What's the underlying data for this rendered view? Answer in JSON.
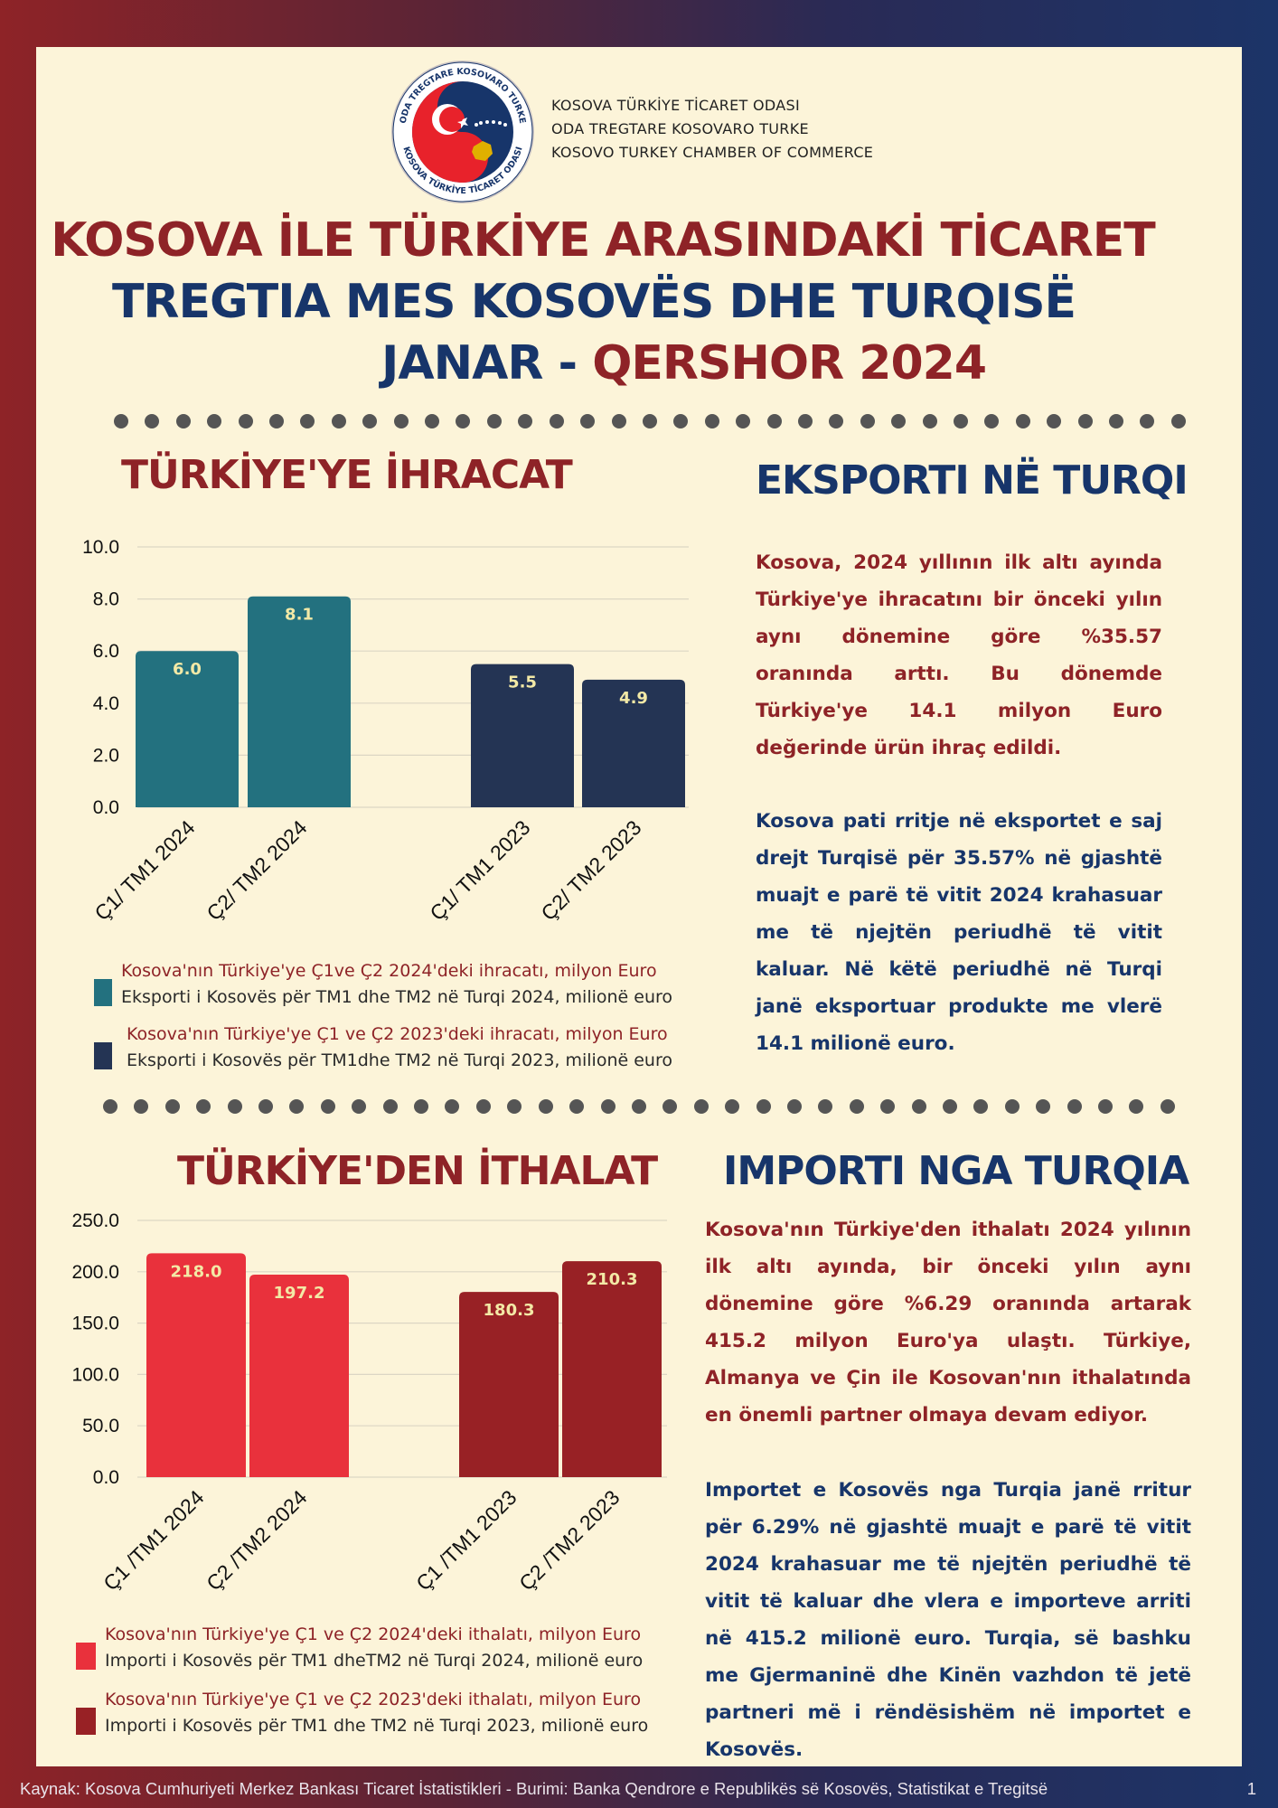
{
  "header": {
    "logo_ring_text": "ODA TREGTARE KOSOVARO TURKE · KOSOVA TÜRKİYE TİCARET ODASI",
    "org_lines": [
      "KOSOVA TÜRKİYE TİCARET ODASI",
      "ODA TREGTARE KOSOVARO TURKE",
      "KOSOVO TURKEY CHAMBER OF COMMERCE"
    ],
    "title_tr": "KOSOVA İLE TÜRKİYE ARASINDAKİ TİCARET",
    "title_sq": "TREGTIA MES KOSOVËS DHE TURQISË",
    "period_a": "JANAR - ",
    "period_b": "QERSHOR 2024"
  },
  "colors": {
    "red": "#8e2327",
    "navy": "#17356a",
    "teal": "#23717f",
    "dark_navy": "#243454",
    "bright_red": "#e9313c",
    "dark_red": "#982125",
    "paper": "#fcf4d9"
  },
  "export": {
    "title_tr": "TÜRKİYE'YE İHRACAT",
    "title_sq": "EKSPORTI NË TURQI",
    "text_tr": "Kosova, 2024 yıllının ilk altı ayında Türkiye'ye ihracatını bir önceki yılın aynı dönemine göre %35.57 oranında arttı. Bu dönemde Türkiye'ye 14.1 milyon Euro değerinde ürün ihraç edildi.",
    "text_sq": "Kosova pati rritje në eksportet e saj drejt Turqisë për 35.57% në gjashtë muajt e  parë të vitit 2024 krahasuar me të njejtën periudhë të vitit kaluar. Në këtë periudhë në Turqi janë eksportuar produkte me vlerë 14.1 milionë euro.",
    "legend": [
      {
        "line1": "Kosova'nın Türkiye'ye Ç1ve Ç2 2024'deki ihracatı, milyon Euro",
        "line2": "Eksporti i Kosovës për TM1 dhe TM2   në Turqi  2024,  milionë euro"
      },
      {
        "line1": "Kosova'nın Türkiye'ye Ç1 ve Ç2  2023'deki ihracatı, milyon Euro",
        "line2": "Eksporti i Kosovës për TM1dhe TM2 në Turqi  2023,  milionë euro"
      }
    ]
  },
  "import": {
    "title_tr": "TÜRKİYE'DEN İTHALAT",
    "title_sq": "IMPORTI NGA TURQIA",
    "text_tr": "Kosova'nın Türkiye'den ithalatı 2024 yılının ilk altı  ayında, bir önceki yılın aynı dönemine göre %6.29 oranında artarak 415.2 milyon Euro'ya ulaştı. Türkiye, Almanya ve Çin ile Kosovan'nın ithalatında en önemli partner olmaya devam ediyor.",
    "text_sq": "Importet e Kosovës nga Turqia janë rritur për 6.29% në gjashtë muajt e parë të vitit 2024 krahasuar me të njejtën periudhë të vitit të kaluar dhe vlera e importeve arriti në 415.2 milionë euro. Turqia, së bashku me Gjermaninë dhe Kinën vazhdon të jetë partneri më i rëndësishëm në importet e Kosovës.",
    "legend": [
      {
        "line1": "Kosova'nın Türkiye'ye Ç1 ve Ç2 2024'deki ithalatı, milyon Euro",
        "line2": "Importi i Kosovës për TM1 dheTM2 në Turqi 2024, milionë euro"
      },
      {
        "line1": "Kosova'nın Türkiye'ye Ç1 ve Ç2  2023'deki ithalatı, milyon Euro",
        "line2": "Importi i Kosovës për TM1 dhe TM2 në Turqi 2023, milionë euro"
      }
    ]
  },
  "chart_data": [
    {
      "type": "bar",
      "categories": [
        "Ç1/ TM1 2024",
        "Ç2/ TM2 2024",
        "Ç1/ TM1 2023",
        "Ç2/ TM2 2023"
      ],
      "values": [
        6.0,
        8.1,
        5.5,
        4.9
      ],
      "value_labels": [
        "6.0",
        "8.1",
        "5.5",
        "4.9"
      ],
      "bar_colors": [
        "#23717f",
        "#23717f",
        "#243454",
        "#243454"
      ],
      "ylim": [
        0,
        10
      ],
      "yticks": [
        "0.0",
        "2.0",
        "4.0",
        "6.0",
        "8.0",
        "10.0"
      ],
      "grid": true
    },
    {
      "type": "bar",
      "categories": [
        "Ç1 /TM1 2024",
        "Ç2 /TM2 2024",
        "Ç1 /TM1 2023",
        "Ç2 /TM2 2023"
      ],
      "values": [
        218.0,
        197.2,
        180.3,
        210.3
      ],
      "value_labels": [
        "218.0",
        "197.2",
        "180.3",
        "210.3"
      ],
      "bar_colors": [
        "#e9313c",
        "#e9313c",
        "#982125",
        "#982125"
      ],
      "ylim": [
        0,
        250
      ],
      "yticks": [
        "0.0",
        "50.0",
        "100.0",
        "150.0",
        "200.0",
        "250.0"
      ],
      "grid": true
    }
  ],
  "footer": {
    "source": "Kaynak: Kosova Cumhuriyeti Merkez Bankası Ticaret İstatistikleri -   Burimi: Banka Qendrore e Republikës së Kosovës, Statistikat e Tregitsë",
    "page": "1"
  }
}
